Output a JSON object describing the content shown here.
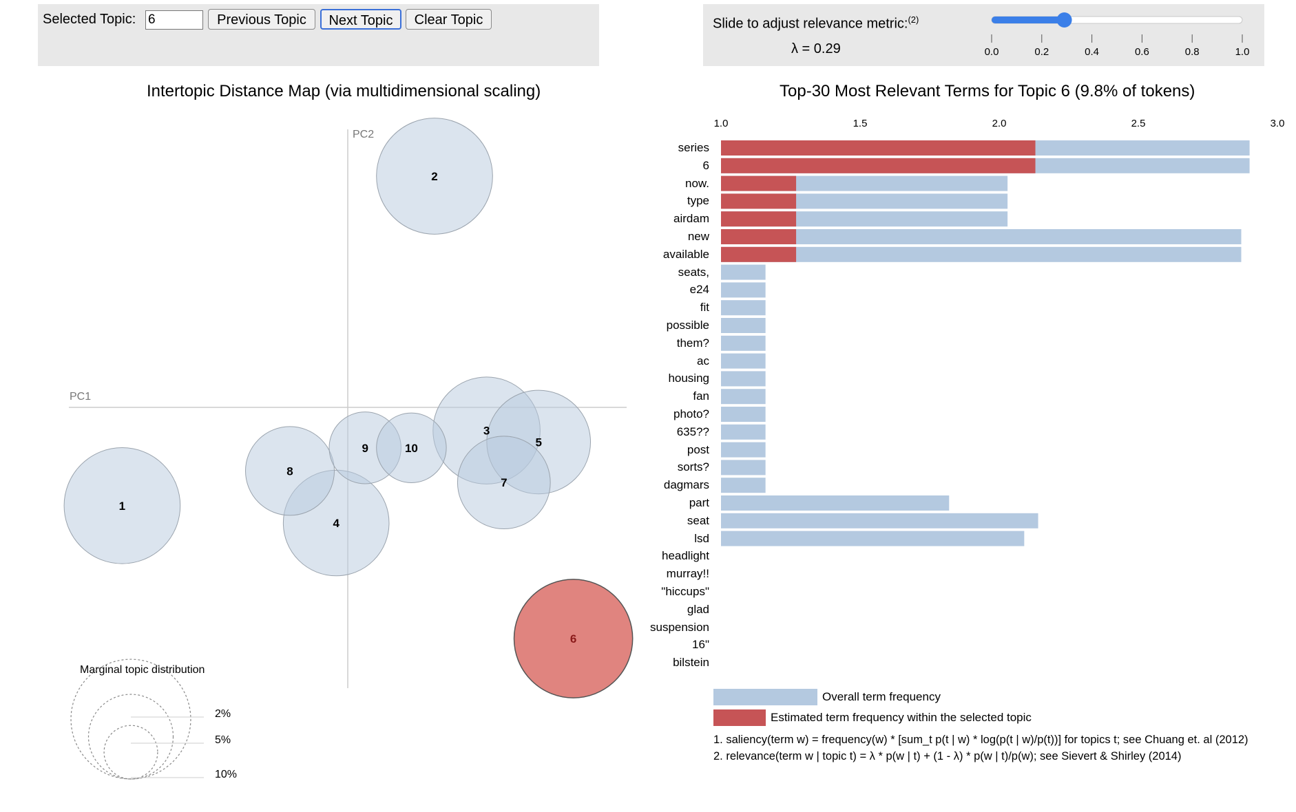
{
  "controls": {
    "selected_topic_label": "Selected Topic:",
    "selected_topic_value": "6",
    "previous_button": "Previous Topic",
    "next_button": "Next Topic",
    "clear_button": "Clear Topic",
    "slider_label": "Slide to adjust relevance metric:",
    "slider_footnote": "(2)",
    "lambda_label": "λ = 0.29",
    "lambda_value": 0.29,
    "slider_min": 0.0,
    "slider_max": 1.0,
    "slider_ticks": [
      "0.0",
      "0.2",
      "0.4",
      "0.6",
      "0.8",
      "1.0"
    ],
    "accent_color": "#3b7fe8"
  },
  "chart_data": [
    {
      "type": "scatter",
      "title": "Intertopic Distance Map (via multidimensional scaling)",
      "xlabel": "PC1",
      "ylabel": "PC2",
      "selected_topic": 6,
      "topics": [
        {
          "topic": "1",
          "pc1": -0.39,
          "pc2": -0.17,
          "size_pct": 9.4
        },
        {
          "topic": "2",
          "pc1": 0.15,
          "pc2": 0.4,
          "size_pct": 9.4
        },
        {
          "topic": "3",
          "pc1": 0.24,
          "pc2": -0.04,
          "size_pct": 8.0
        },
        {
          "topic": "4",
          "pc1": -0.02,
          "pc2": -0.2,
          "size_pct": 7.8
        },
        {
          "topic": "5",
          "pc1": 0.33,
          "pc2": -0.06,
          "size_pct": 7.5
        },
        {
          "topic": "6",
          "pc1": 0.39,
          "pc2": -0.4,
          "size_pct": 9.8
        },
        {
          "topic": "7",
          "pc1": 0.27,
          "pc2": -0.13,
          "size_pct": 6.0
        },
        {
          "topic": "8",
          "pc1": -0.1,
          "pc2": -0.11,
          "size_pct": 5.5
        },
        {
          "topic": "9",
          "pc1": 0.03,
          "pc2": -0.07,
          "size_pct": 3.6
        },
        {
          "topic": "10",
          "pc1": 0.11,
          "pc2": -0.07,
          "size_pct": 3.4
        }
      ],
      "colors": {
        "default": "#b7c9de",
        "selected": "#d8655f",
        "axis": "#cccccc"
      },
      "marginal_legend": {
        "title": "Marginal topic distribution",
        "labels": [
          "2%",
          "5%",
          "10%"
        ],
        "values": [
          2,
          5,
          10
        ]
      }
    },
    {
      "type": "bar",
      "title": "Top-30 Most Relevant Terms for Topic 6 (9.8% of tokens)",
      "xlim": [
        1.0,
        3.0
      ],
      "ticks": [
        "1.0",
        "1.5",
        "2.0",
        "2.5",
        "3.0"
      ],
      "categories": [
        "series",
        "6",
        "now.",
        "type",
        "airdam",
        "new",
        "available",
        "seats,",
        "e24",
        "fit",
        "possible",
        "them?",
        "ac",
        "housing",
        "fan",
        "photo?",
        "635??",
        "post",
        "sorts?",
        "dagmars",
        "part",
        "seat",
        "lsd",
        "headlight",
        "murray!!",
        "\"hiccups\"",
        "glad",
        "suspension",
        "16\"",
        "bilstein"
      ],
      "series": [
        {
          "name": "Overall term frequency",
          "color": "#b4c9e0",
          "values": [
            2.9,
            2.9,
            2.03,
            2.03,
            2.03,
            2.87,
            2.87,
            1.16,
            1.16,
            1.16,
            1.16,
            1.16,
            1.16,
            1.16,
            1.16,
            1.16,
            1.16,
            1.16,
            1.16,
            1.16,
            1.82,
            2.14,
            2.09,
            1.0,
            1.0,
            1.0,
            1.0,
            1.0,
            1.0,
            1.0
          ]
        },
        {
          "name": "Estimated term frequency within the selected topic",
          "color": "#c65456",
          "values": [
            2.13,
            2.13,
            1.27,
            1.27,
            1.27,
            1.27,
            1.27,
            1.0,
            1.0,
            1.0,
            1.0,
            1.0,
            1.0,
            1.0,
            1.0,
            1.0,
            1.0,
            1.0,
            1.0,
            1.0,
            1.0,
            1.0,
            1.0,
            1.0,
            1.0,
            1.0,
            1.0,
            1.0,
            1.0,
            1.0
          ]
        }
      ],
      "legend": [
        "Overall term frequency",
        "Estimated term frequency within the selected topic"
      ]
    }
  ],
  "footnotes": [
    "1. saliency(term w) = frequency(w) * [sum_t p(t | w) * log(p(t | w)/p(t))] for topics t; see Chuang et. al (2012)",
    "2. relevance(term w | topic t) = λ * p(w | t) + (1 - λ) * p(w | t)/p(w); see Sievert & Shirley (2014)"
  ]
}
